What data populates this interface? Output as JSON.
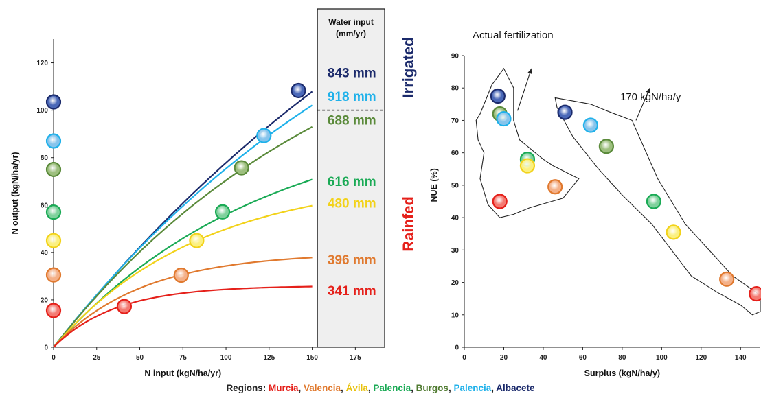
{
  "chart_data": [
    {
      "type": "line",
      "xlabel": "N input (kgN/ha/yr)",
      "ylabel": "N output (kgN/ha/yr)",
      "xlim": [
        0,
        190
      ],
      "ylim": [
        0,
        130
      ],
      "xticks": [
        "0",
        "25",
        "50",
        "75",
        "100",
        "125",
        "150",
        "175"
      ],
      "yticks": [
        "0",
        "20",
        "40",
        "60",
        "80",
        "100",
        "120"
      ],
      "water_box": {
        "header": [
          "Water input",
          "(mm/yr)"
        ],
        "irrigated_label": "Irrigated",
        "rainfed_label": "Rainfed",
        "divider_y": 100
      },
      "series": [
        {
          "label": "843 mm",
          "color": "#1b2a6b",
          "mid": "#4a68b8",
          "A": 270,
          "k": 0.0034,
          "point_input": 142,
          "point_output": 108.3,
          "label_output": 116,
          "zero_output": 103.5
        },
        {
          "label": "918 mm",
          "color": "#1fb1ea",
          "mid": "#86c4ec",
          "A": 208,
          "k": 0.0045,
          "point_input": 122,
          "point_output": 89.3,
          "label_output": 106,
          "zero_output": 87
        },
        {
          "label": "688 mm",
          "color": "#5a8a3a",
          "mid": "#9dbf7e",
          "A": 160,
          "k": 0.0058,
          "point_input": 109,
          "point_output": 75.7,
          "label_output": 96,
          "zero_output": 75
        },
        {
          "label": "616 mm",
          "color": "#1aaa55",
          "mid": "#7fd19c",
          "A": 100,
          "k": 0.0082,
          "point_input": 98,
          "point_output": 57.1,
          "label_output": 70,
          "zero_output": 57
        },
        {
          "label": "480 mm",
          "color": "#f2d21a",
          "mid": "#fbf080",
          "A": 72,
          "k": 0.0118,
          "point_input": 83,
          "point_output": 45.0,
          "label_output": 61,
          "zero_output": 45
        },
        {
          "label": "396 mm",
          "color": "#e0792e",
          "mid": "#f4b088",
          "A": 40,
          "k": 0.0195,
          "point_input": 74,
          "point_output": 30.4,
          "label_output": 37,
          "zero_output": 30.5
        },
        {
          "label": "341 mm",
          "color": "#e5201a",
          "mid": "#f47a72",
          "A": 26,
          "k": 0.028,
          "point_input": 41,
          "point_output": 17.2,
          "label_output": 24,
          "zero_output": 15.5
        }
      ]
    },
    {
      "type": "scatter",
      "xlabel": "Surplus (kgN/ha/y)",
      "ylabel": "NUE (%)",
      "xlim": [
        0,
        150
      ],
      "ylim": [
        0,
        90
      ],
      "xticks": [
        "0",
        "20",
        "40",
        "60",
        "80",
        "100",
        "120",
        "140"
      ],
      "yticks": [
        "0",
        "10",
        "20",
        "30",
        "40",
        "50",
        "60",
        "70",
        "80",
        "90"
      ],
      "annotations": [
        "Actual fertilization",
        "170 kgN/ha/y"
      ],
      "points": [
        {
          "group": "actual",
          "x": 17,
          "y": 77.5,
          "color": "#1b2a6b",
          "mid": "#4a68b8"
        },
        {
          "group": "actual",
          "x": 18,
          "y": 72,
          "color": "#5a8a3a",
          "mid": "#9dbf7e"
        },
        {
          "group": "actual",
          "x": 20,
          "y": 70.5,
          "color": "#1fb1ea",
          "mid": "#86c4ec"
        },
        {
          "group": "actual",
          "x": 32,
          "y": 58,
          "color": "#1aaa55",
          "mid": "#7fd19c"
        },
        {
          "group": "actual",
          "x": 32,
          "y": 56,
          "color": "#f2d21a",
          "mid": "#fbf080"
        },
        {
          "group": "actual",
          "x": 46,
          "y": 49.5,
          "color": "#e0792e",
          "mid": "#f4b088"
        },
        {
          "group": "actual",
          "x": 18,
          "y": 45,
          "color": "#e5201a",
          "mid": "#f47a72"
        },
        {
          "group": "170",
          "x": 51,
          "y": 72.5,
          "color": "#1b2a6b",
          "mid": "#4a68b8"
        },
        {
          "group": "170",
          "x": 64,
          "y": 68.5,
          "color": "#1fb1ea",
          "mid": "#86c4ec"
        },
        {
          "group": "170",
          "x": 72,
          "y": 62,
          "color": "#5a8a3a",
          "mid": "#9dbf7e"
        },
        {
          "group": "170",
          "x": 96,
          "y": 45,
          "color": "#1aaa55",
          "mid": "#7fd19c"
        },
        {
          "group": "170",
          "x": 106,
          "y": 35.5,
          "color": "#f2d21a",
          "mid": "#fbf080"
        },
        {
          "group": "170",
          "x": 133,
          "y": 21,
          "color": "#e0792e",
          "mid": "#f4b088"
        },
        {
          "group": "170",
          "x": 148,
          "y": 16.5,
          "color": "#e5201a",
          "mid": "#f47a72"
        }
      ],
      "hull_actual": [
        [
          8,
          72
        ],
        [
          14,
          81
        ],
        [
          20,
          86
        ],
        [
          25,
          80
        ],
        [
          25,
          70
        ],
        [
          28,
          64
        ],
        [
          40,
          58
        ],
        [
          45,
          56
        ],
        [
          58,
          52
        ],
        [
          50,
          46
        ],
        [
          33,
          43
        ],
        [
          25,
          41
        ],
        [
          18,
          40
        ],
        [
          12,
          44
        ],
        [
          8,
          52
        ],
        [
          10,
          60
        ],
        [
          7,
          64
        ],
        [
          6,
          70
        ]
      ],
      "hull_170": [
        [
          47,
          74
        ],
        [
          46,
          77
        ],
        [
          55,
          76
        ],
        [
          64,
          75
        ],
        [
          72,
          73
        ],
        [
          85,
          70
        ],
        [
          98,
          52
        ],
        [
          112,
          38
        ],
        [
          124,
          30
        ],
        [
          136,
          22
        ],
        [
          150,
          16
        ],
        [
          150,
          11
        ],
        [
          146,
          10
        ],
        [
          140,
          13
        ],
        [
          128,
          17
        ],
        [
          115,
          22
        ],
        [
          105,
          30
        ],
        [
          95,
          38
        ],
        [
          80,
          47
        ],
        [
          68,
          55
        ],
        [
          55,
          65
        ]
      ],
      "arrow_actual": [
        [
          27,
          73
        ],
        [
          34,
          86
        ]
      ],
      "arrow_170": [
        [
          87,
          70
        ],
        [
          94,
          80
        ]
      ]
    }
  ],
  "regions_title": "Regions:",
  "regions": [
    {
      "name": "Murcia",
      "color": "#e5201a"
    },
    {
      "name": "Valencia",
      "color": "#e0792e"
    },
    {
      "name": "Ávila",
      "color": "#e8c20e"
    },
    {
      "name": "Palencia",
      "color": "#1aaa55"
    },
    {
      "name": "Burgos",
      "color": "#4f7a30"
    },
    {
      "name": "Palencia",
      "color": "#1fb1ea"
    },
    {
      "name": "Albacete",
      "color": "#1b2a6b"
    }
  ]
}
